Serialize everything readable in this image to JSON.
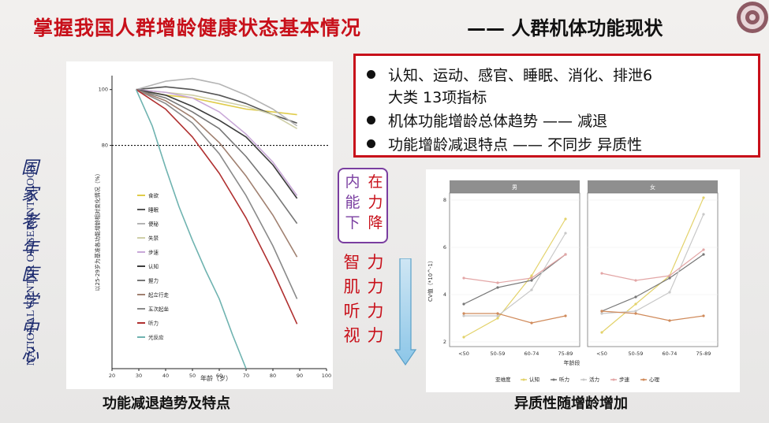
{
  "slide": {
    "title_main": "掌握我国人群增龄健康状态基本情况",
    "title_sub": "—— 人群机体功能现状",
    "brand_color": "#c8101a"
  },
  "sidebar": {
    "seal_chars": [
      "国",
      "家",
      "老",
      "年",
      "医",
      "学",
      "中",
      "心"
    ],
    "seal_english": "NATIONAL CENTER OF GERONTOLOGY"
  },
  "bullets": [
    "认知、运动、感官、睡眠、消化、排泄6",
    "大类 13项指标",
    "机体功能增龄总体趋势 —— 减退",
    "功能增龄减退特点 —— 不同步 异质性"
  ],
  "decline_box": {
    "col_right": [
      "在",
      "力",
      "降"
    ],
    "col_left": [
      "内",
      "能",
      "下"
    ]
  },
  "decline_list": {
    "col_left": [
      "智",
      "肌",
      "听",
      "视"
    ],
    "col_right": [
      "力",
      "力",
      "力",
      "力"
    ]
  },
  "captions": {
    "left": "功能减退趋势及特点",
    "right": "异质性随增龄增加"
  },
  "chart_data": [
    {
      "type": "line",
      "title": "",
      "xlabel": "年龄（岁）",
      "ylabel": "以25-29岁为基准各功能增龄相对变化情况（%）",
      "xlim": [
        20,
        100
      ],
      "ylim": [
        0,
        105
      ],
      "x_ticks": [
        20,
        30,
        40,
        50,
        60,
        70,
        80,
        90,
        100
      ],
      "y_ticks": [
        100,
        80
      ],
      "reference_line": 80,
      "legend_position": "left-center",
      "series": [
        {
          "name": "食欲",
          "color": "#e0cc4a",
          "x": [
            29,
            40,
            50,
            60,
            70,
            80,
            89
          ],
          "y": [
            100,
            98,
            97,
            95,
            93,
            92,
            91
          ]
        },
        {
          "name": "睡眠",
          "color": "#555555",
          "x": [
            29,
            40,
            50,
            60,
            70,
            80,
            89
          ],
          "y": [
            100,
            101,
            100,
            98,
            95,
            91,
            88
          ]
        },
        {
          "name": "便秘",
          "color": "#b4b4b4",
          "x": [
            29,
            40,
            50,
            60,
            70,
            80,
            89
          ],
          "y": [
            100,
            103,
            104,
            102,
            98,
            93,
            87
          ]
        },
        {
          "name": "失禁",
          "color": "#cfcfa8",
          "x": [
            29,
            40,
            50,
            60,
            70,
            80,
            89
          ],
          "y": [
            100,
            99,
            98,
            96,
            94,
            91,
            86
          ]
        },
        {
          "name": "步速",
          "color": "#c9a8d8",
          "x": [
            29,
            40,
            50,
            60,
            70,
            80,
            89
          ],
          "y": [
            100,
            99,
            97,
            92,
            84,
            74,
            62
          ]
        },
        {
          "name": "认知",
          "color": "#3c3c3c",
          "x": [
            29,
            40,
            50,
            60,
            70,
            80,
            89
          ],
          "y": [
            100,
            98,
            94,
            89,
            83,
            73,
            61
          ]
        },
        {
          "name": "握力",
          "color": "#777777",
          "x": [
            29,
            40,
            50,
            60,
            70,
            80,
            89
          ],
          "y": [
            100,
            97,
            92,
            86,
            76,
            64,
            52
          ]
        },
        {
          "name": "起立行走",
          "color": "#a08070",
          "x": [
            29,
            40,
            50,
            60,
            70,
            80,
            89
          ],
          "y": [
            100,
            96,
            90,
            81,
            69,
            55,
            40
          ]
        },
        {
          "name": "五次起坐",
          "color": "#8a8a8a",
          "x": [
            29,
            40,
            50,
            60,
            70,
            80,
            89
          ],
          "y": [
            100,
            95,
            88,
            77,
            62,
            44,
            25
          ]
        },
        {
          "name": "听力",
          "color": "#b03030",
          "x": [
            29,
            40,
            50,
            60,
            70,
            80,
            89
          ],
          "y": [
            100,
            93,
            83,
            70,
            54,
            35,
            16
          ]
        },
        {
          "name": "光反应",
          "color": "#6fb3b0",
          "x": [
            29,
            35,
            40,
            45,
            50,
            55,
            60,
            65,
            70
          ],
          "y": [
            100,
            87,
            72,
            58,
            46,
            35,
            25,
            12,
            0
          ]
        }
      ]
    },
    {
      "type": "line",
      "title": "",
      "facets": [
        "男",
        "女"
      ],
      "xlabel": "年龄段",
      "ylabel": "CV值（*10^-1）",
      "categories": [
        "<50",
        "50-59",
        "60-74",
        "75-89"
      ],
      "ylim": [
        1.8,
        8.3
      ],
      "y_ticks": [
        2,
        4,
        6,
        8
      ],
      "legend_title": "亚维度",
      "legend_position": "bottom",
      "series": [
        {
          "name": "认知",
          "color": "#e3d26a",
          "男": [
            2.2,
            3.0,
            4.8,
            7.2
          ],
          "女": [
            2.4,
            3.6,
            4.8,
            8.1
          ]
        },
        {
          "name": "听力",
          "color": "#777777",
          "男": [
            3.6,
            4.3,
            4.6,
            5.7
          ],
          "女": [
            3.3,
            3.9,
            4.7,
            5.7
          ]
        },
        {
          "name": "活力",
          "color": "#c8c8c8",
          "男": [
            3.1,
            3.1,
            4.2,
            6.6
          ],
          "女": [
            3.2,
            3.3,
            4.1,
            7.4
          ]
        },
        {
          "name": "步速",
          "color": "#e3a6a6",
          "男": [
            4.7,
            4.5,
            4.7,
            5.7
          ],
          "女": [
            4.9,
            4.6,
            4.8,
            5.9
          ]
        },
        {
          "name": "心理",
          "color": "#d08a5a",
          "男": [
            3.2,
            3.2,
            2.8,
            3.1
          ],
          "女": [
            3.3,
            3.2,
            2.9,
            3.1
          ]
        }
      ]
    }
  ]
}
